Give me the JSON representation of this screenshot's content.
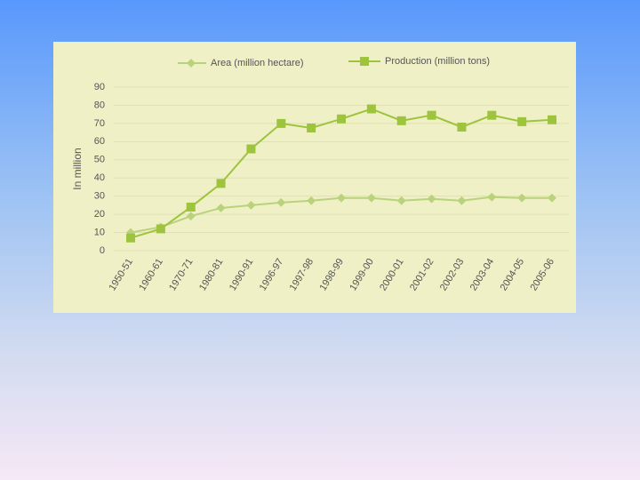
{
  "chart_data": {
    "type": "line",
    "y_label": "In million",
    "categories": [
      "1950-51",
      "1960-61",
      "1970-71",
      "1980-81",
      "1990-91",
      "1996-97",
      "1997-98",
      "1998-99",
      "1999-00",
      "2000-01",
      "2001-02",
      "2002-03",
      "2003-04",
      "2004-05",
      "2005-06"
    ],
    "series": [
      {
        "name": "Area (million hectare)",
        "color": "#b9d27c",
        "marker": "diamond",
        "values": [
          10,
          13,
          19,
          23.5,
          25,
          26.5,
          27.5,
          29,
          29,
          27.5,
          28.5,
          27.5,
          29.5,
          29,
          29
        ]
      },
      {
        "name": "Production (million tons)",
        "color": "#9dc43c",
        "marker": "square",
        "values": [
          7,
          12,
          24,
          37,
          56,
          70,
          67.5,
          72.5,
          78,
          71.5,
          74.5,
          68,
          74.5,
          71,
          72
        ]
      }
    ],
    "ylim": [
      0,
      90
    ],
    "yticks": [
      0,
      10,
      20,
      30,
      40,
      50,
      60,
      70,
      80,
      90
    ],
    "grid": true
  }
}
